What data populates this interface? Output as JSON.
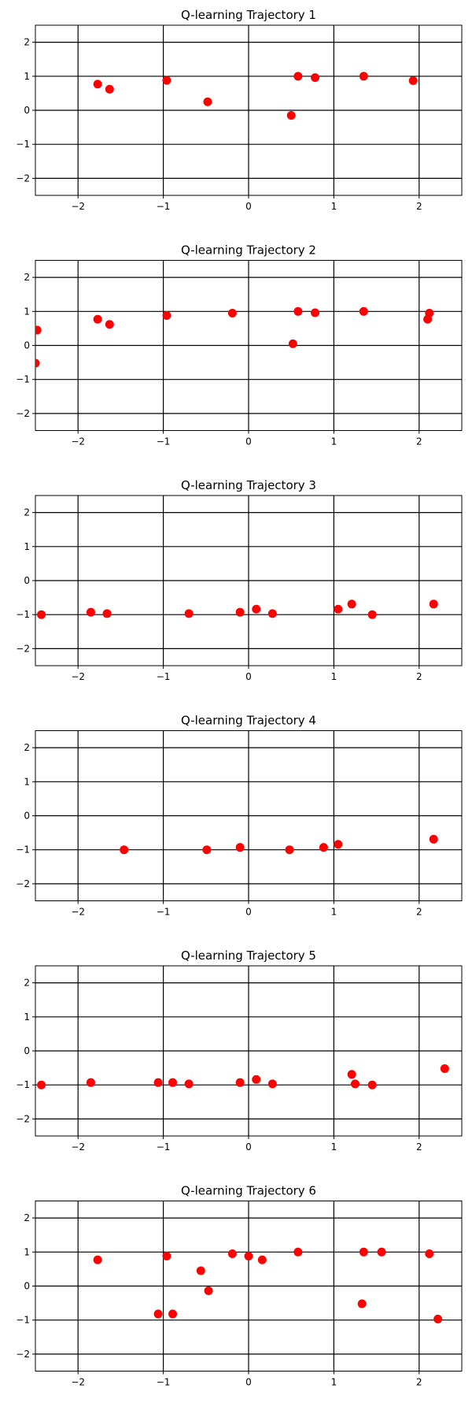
{
  "colors": {
    "point": "#ff0000",
    "grid": "#000000",
    "frame": "#000000",
    "background": "#ffffff"
  },
  "chart_data": [
    {
      "type": "scatter",
      "title": "Q-learning Trajectory 1",
      "xlim": [
        -2.5,
        2.5
      ],
      "ylim": [
        -2.5,
        2.5
      ],
      "xticks": [
        -2,
        -1,
        0,
        1,
        2
      ],
      "yticks": [
        -2,
        -1,
        0,
        1,
        2
      ],
      "grid": true,
      "points": [
        [
          -1.77,
          0.77
        ],
        [
          -1.63,
          0.62
        ],
        [
          -0.96,
          0.88
        ],
        [
          -0.48,
          0.25
        ],
        [
          0.5,
          -0.15
        ],
        [
          0.58,
          1.0
        ],
        [
          0.78,
          0.96
        ],
        [
          1.35,
          1.0
        ],
        [
          1.93,
          0.87
        ]
      ]
    },
    {
      "type": "scatter",
      "title": "Q-learning Trajectory 2",
      "xlim": [
        -2.5,
        2.5
      ],
      "ylim": [
        -2.5,
        2.5
      ],
      "xticks": [
        -2,
        -1,
        0,
        1,
        2
      ],
      "yticks": [
        -2,
        -1,
        0,
        1,
        2
      ],
      "grid": true,
      "points": [
        [
          -2.48,
          0.45
        ],
        [
          -2.5,
          -0.52
        ],
        [
          -1.77,
          0.77
        ],
        [
          -1.63,
          0.62
        ],
        [
          -0.96,
          0.88
        ],
        [
          -0.19,
          0.95
        ],
        [
          0.52,
          0.05
        ],
        [
          0.58,
          1.0
        ],
        [
          0.78,
          0.96
        ],
        [
          1.35,
          1.0
        ],
        [
          2.1,
          0.77
        ],
        [
          2.12,
          0.95
        ]
      ]
    },
    {
      "type": "scatter",
      "title": "Q-learning Trajectory 3",
      "xlim": [
        -2.5,
        2.5
      ],
      "ylim": [
        -2.5,
        2.5
      ],
      "xticks": [
        -2,
        -1,
        0,
        1,
        2
      ],
      "yticks": [
        -2,
        -1,
        0,
        1,
        2
      ],
      "grid": true,
      "points": [
        [
          -2.43,
          -1.0
        ],
        [
          -1.85,
          -0.93
        ],
        [
          -1.66,
          -0.97
        ],
        [
          -0.7,
          -0.97
        ],
        [
          -0.1,
          -0.93
        ],
        [
          0.09,
          -0.84
        ],
        [
          0.28,
          -0.97
        ],
        [
          1.05,
          -0.84
        ],
        [
          1.21,
          -0.69
        ],
        [
          1.45,
          -1.0
        ],
        [
          2.17,
          -0.69
        ]
      ]
    },
    {
      "type": "scatter",
      "title": "Q-learning Trajectory 4",
      "xlim": [
        -2.5,
        2.5
      ],
      "ylim": [
        -2.5,
        2.5
      ],
      "xticks": [
        -2,
        -1,
        0,
        1,
        2
      ],
      "yticks": [
        -2,
        -1,
        0,
        1,
        2
      ],
      "grid": true,
      "points": [
        [
          -1.46,
          -1.0
        ],
        [
          -0.49,
          -1.0
        ],
        [
          -0.1,
          -0.93
        ],
        [
          0.48,
          -1.0
        ],
        [
          0.88,
          -0.93
        ],
        [
          1.05,
          -0.84
        ],
        [
          2.17,
          -0.69
        ]
      ]
    },
    {
      "type": "scatter",
      "title": "Q-learning Trajectory 5",
      "xlim": [
        -2.5,
        2.5
      ],
      "ylim": [
        -2.5,
        2.5
      ],
      "xticks": [
        -2,
        -1,
        0,
        1,
        2
      ],
      "yticks": [
        -2,
        -1,
        0,
        1,
        2
      ],
      "grid": true,
      "points": [
        [
          -2.43,
          -1.0
        ],
        [
          -1.85,
          -0.93
        ],
        [
          -1.06,
          -0.93
        ],
        [
          -0.89,
          -0.93
        ],
        [
          -0.7,
          -0.97
        ],
        [
          -0.1,
          -0.93
        ],
        [
          0.09,
          -0.84
        ],
        [
          0.28,
          -0.97
        ],
        [
          1.21,
          -0.69
        ],
        [
          1.25,
          -0.97
        ],
        [
          1.45,
          -1.0
        ],
        [
          2.3,
          -0.52
        ]
      ]
    },
    {
      "type": "scatter",
      "title": "Q-learning Trajectory 6",
      "xlim": [
        -2.5,
        2.5
      ],
      "ylim": [
        -2.5,
        2.5
      ],
      "xticks": [
        -2,
        -1,
        0,
        1,
        2
      ],
      "yticks": [
        -2,
        -1,
        0,
        1,
        2
      ],
      "grid": true,
      "points": [
        [
          -1.77,
          0.77
        ],
        [
          -1.06,
          -0.82
        ],
        [
          -0.96,
          0.88
        ],
        [
          -0.89,
          -0.82
        ],
        [
          -0.56,
          0.45
        ],
        [
          -0.47,
          -0.14
        ],
        [
          -0.19,
          0.95
        ],
        [
          0.0,
          0.88
        ],
        [
          0.16,
          0.77
        ],
        [
          0.58,
          1.0
        ],
        [
          1.33,
          -0.52
        ],
        [
          1.35,
          1.0
        ],
        [
          1.56,
          1.0
        ],
        [
          2.12,
          0.95
        ],
        [
          2.22,
          -0.97
        ]
      ]
    }
  ]
}
